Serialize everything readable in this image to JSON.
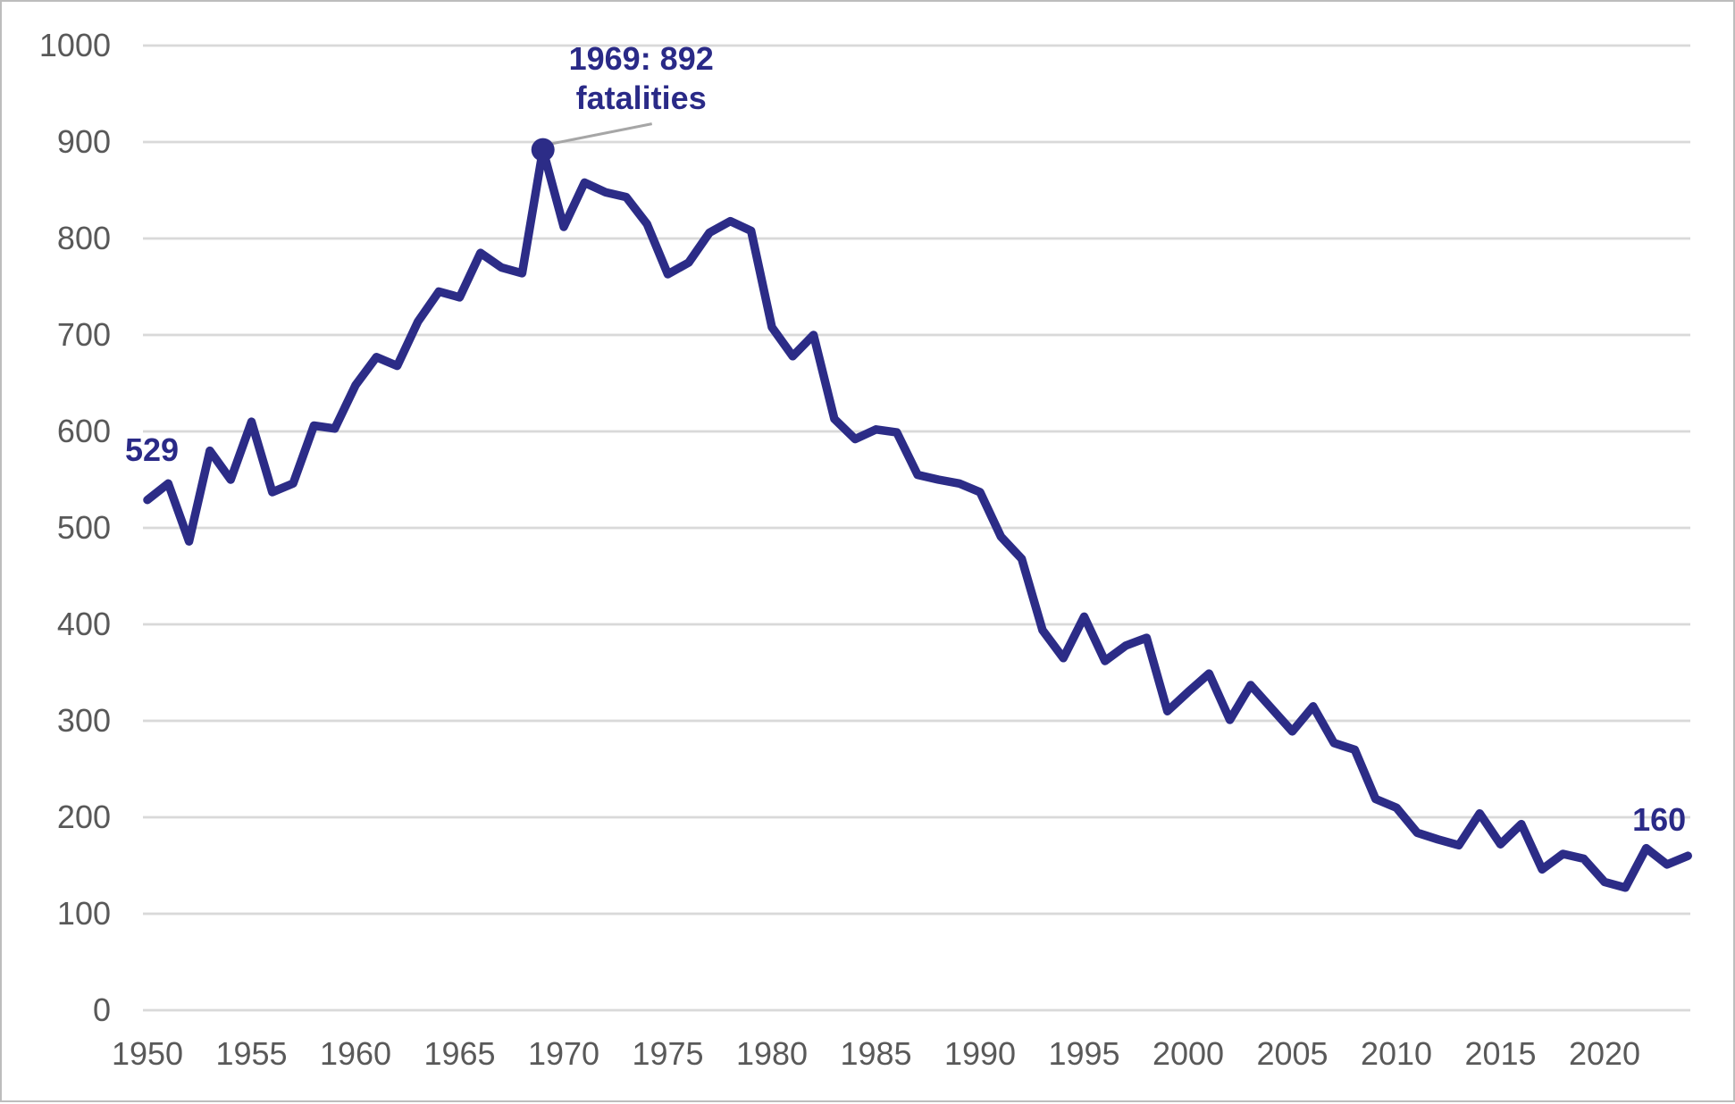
{
  "chart_data": {
    "type": "line",
    "title": "",
    "x_label": "",
    "y_label": "",
    "years": [
      1950,
      1951,
      1952,
      1953,
      1954,
      1955,
      1956,
      1957,
      1958,
      1959,
      1960,
      1961,
      1962,
      1963,
      1964,
      1965,
      1966,
      1967,
      1968,
      1969,
      1970,
      1971,
      1972,
      1973,
      1974,
      1975,
      1976,
      1977,
      1978,
      1979,
      1980,
      1981,
      1982,
      1983,
      1984,
      1985,
      1986,
      1987,
      1988,
      1989,
      1990,
      1991,
      1992,
      1993,
      1994,
      1995,
      1996,
      1997,
      1998,
      1999,
      2000,
      2001,
      2002,
      2003,
      2004,
      2005,
      2006,
      2007,
      2008,
      2009,
      2010,
      2011,
      2012,
      2013,
      2014,
      2015,
      2016,
      2017,
      2018,
      2019,
      2020,
      2021,
      2022,
      2023,
      2024
    ],
    "series": [
      {
        "name": "fatalities",
        "values": [
          529,
          546,
          486,
          580,
          550,
          610,
          537,
          546,
          606,
          603,
          648,
          677,
          668,
          714,
          745,
          739,
          785,
          770,
          764,
          892,
          812,
          858,
          848,
          843,
          815,
          763,
          775,
          806,
          818,
          808,
          708,
          678,
          700,
          613,
          592,
          602,
          599,
          555,
          550,
          546,
          537,
          491,
          468,
          394,
          365,
          408,
          362,
          378,
          386,
          310,
          330,
          349,
          301,
          337,
          313,
          289,
          315,
          277,
          270,
          219,
          210,
          184,
          177,
          171,
          204,
          172,
          193,
          146,
          162,
          157,
          133,
          127,
          168,
          151,
          160
        ]
      }
    ],
    "ylim": [
      0,
      1000
    ],
    "yticks": [
      0,
      100,
      200,
      300,
      400,
      500,
      600,
      700,
      800,
      900,
      1000
    ],
    "xticks": [
      1950,
      1955,
      1960,
      1965,
      1970,
      1975,
      1980,
      1985,
      1990,
      1995,
      2000,
      2005,
      2010,
      2015,
      2020
    ],
    "grid": "horizontal",
    "legend": "none",
    "annotations": {
      "start": {
        "text": "529",
        "year": 1950,
        "value": 529
      },
      "peak": {
        "line1": "1969: 892",
        "line2": "fatalities",
        "year": 1969,
        "value": 892
      },
      "end": {
        "text": "160",
        "year": 2024,
        "value": 160
      }
    }
  },
  "colors": {
    "line": "#2c2c87",
    "annotation_text": "#2a2a87",
    "axis_text": "#595959",
    "gridline": "#d9d9d9",
    "leader_line": "#a6a6a6",
    "border": "#bdbdbd",
    "background": "#ffffff"
  }
}
